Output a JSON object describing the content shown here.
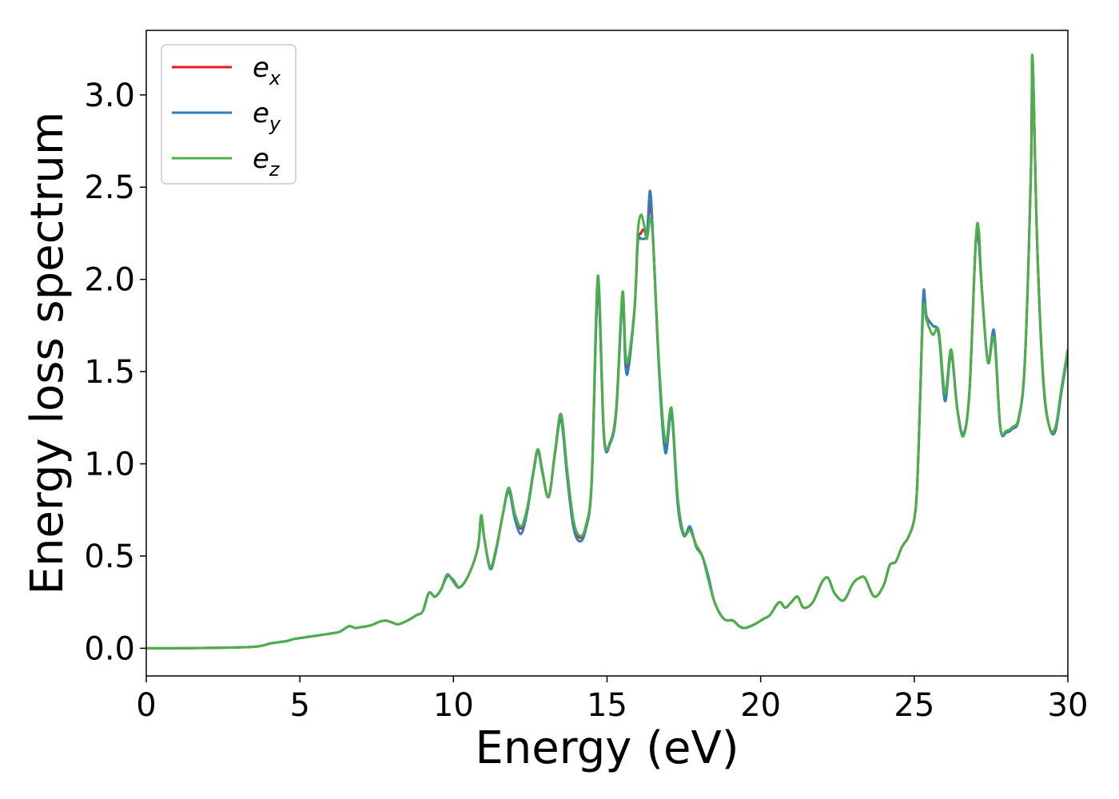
{
  "chart_data": {
    "type": "line",
    "xlabel": "Energy (eV)",
    "ylabel": "Energy loss spectrum",
    "xlim": [
      0,
      30
    ],
    "ylim": [
      -0.15,
      3.35
    ],
    "xticks": [
      "0",
      "5",
      "10",
      "15",
      "20",
      "25",
      "30"
    ],
    "yticks": [
      "0.0",
      "0.5",
      "1.0",
      "1.5",
      "2.0",
      "2.5",
      "3.0"
    ],
    "grid": false,
    "legend_position": "top-left",
    "series": [
      {
        "name": "e",
        "subscript": "x",
        "color": "#e41a1c",
        "x": [
          0,
          1,
          2,
          3,
          3.5,
          3.8,
          4.0,
          4.2,
          4.4,
          4.6,
          4.8,
          5.0,
          5.2,
          5.4,
          5.6,
          5.8,
          6.0,
          6.3,
          6.6,
          6.8,
          7.0,
          7.2,
          7.4,
          7.6,
          7.8,
          8.0,
          8.2,
          8.5,
          8.8,
          9.0,
          9.2,
          9.4,
          9.6,
          9.8,
          10.0,
          10.2,
          10.5,
          10.8,
          10.9,
          11.0,
          11.2,
          11.4,
          11.6,
          11.8,
          12.0,
          12.2,
          12.4,
          12.6,
          12.75,
          12.9,
          13.1,
          13.3,
          13.5,
          13.7,
          13.9,
          14.1,
          14.3,
          14.5,
          14.7,
          14.9,
          15.1,
          15.3,
          15.5,
          15.6,
          15.7,
          15.9,
          16.0,
          16.1,
          16.2,
          16.3,
          16.4,
          16.5,
          16.7,
          16.9,
          17.1,
          17.3,
          17.5,
          17.7,
          17.9,
          18.1,
          18.3,
          18.5,
          18.8,
          19.1,
          19.3,
          19.5,
          19.8,
          20.1,
          20.3,
          20.6,
          20.8,
          21.0,
          21.2,
          21.4,
          21.7,
          22.0,
          22.2,
          22.4,
          22.7,
          23.0,
          23.2,
          23.4,
          23.7,
          24.0,
          24.2,
          24.4,
          24.6,
          24.8,
          25.0,
          25.1,
          25.2,
          25.3,
          25.4,
          25.6,
          25.8,
          26.0,
          26.2,
          26.4,
          26.6,
          26.8,
          27.0,
          27.1,
          27.2,
          27.4,
          27.6,
          27.8,
          28.0,
          28.2,
          28.4,
          28.6,
          28.8,
          28.85,
          29.0,
          29.2,
          29.4,
          29.6,
          29.8,
          30.0
        ],
        "values": [
          0,
          0,
          0.002,
          0.005,
          0.008,
          0.015,
          0.025,
          0.03,
          0.035,
          0.04,
          0.05,
          0.055,
          0.06,
          0.065,
          0.07,
          0.075,
          0.08,
          0.09,
          0.12,
          0.11,
          0.115,
          0.12,
          0.13,
          0.145,
          0.15,
          0.14,
          0.13,
          0.15,
          0.18,
          0.2,
          0.3,
          0.28,
          0.32,
          0.4,
          0.36,
          0.33,
          0.4,
          0.55,
          0.72,
          0.6,
          0.44,
          0.55,
          0.72,
          0.86,
          0.72,
          0.65,
          0.75,
          0.95,
          1.07,
          0.95,
          0.82,
          1.05,
          1.25,
          0.95,
          0.68,
          0.6,
          0.65,
          0.9,
          1.95,
          1.15,
          1.12,
          1.3,
          1.9,
          1.58,
          1.55,
          1.85,
          2.2,
          2.25,
          2.27,
          2.24,
          2.42,
          2.2,
          1.5,
          1.1,
          1.28,
          0.8,
          0.62,
          0.65,
          0.56,
          0.5,
          0.38,
          0.25,
          0.16,
          0.15,
          0.12,
          0.11,
          0.13,
          0.16,
          0.18,
          0.25,
          0.22,
          0.25,
          0.28,
          0.22,
          0.25,
          0.36,
          0.38,
          0.3,
          0.26,
          0.35,
          0.38,
          0.38,
          0.28,
          0.34,
          0.45,
          0.47,
          0.55,
          0.6,
          0.7,
          0.9,
          1.4,
          1.9,
          1.8,
          1.75,
          1.7,
          1.38,
          1.6,
          1.3,
          1.16,
          1.4,
          2.2,
          2.2,
          1.95,
          1.55,
          1.7,
          1.2,
          1.17,
          1.2,
          1.25,
          1.55,
          2.6,
          3.2,
          2.2,
          1.45,
          1.2,
          1.2,
          1.4,
          1.6
        ]
      },
      {
        "name": "e",
        "subscript": "y",
        "color": "#377eb8",
        "x": [
          0,
          1,
          2,
          3,
          3.5,
          3.8,
          4.0,
          4.2,
          4.4,
          4.6,
          4.8,
          5.0,
          5.2,
          5.4,
          5.6,
          5.8,
          6.0,
          6.3,
          6.6,
          6.8,
          7.0,
          7.2,
          7.4,
          7.6,
          7.8,
          8.0,
          8.2,
          8.5,
          8.8,
          9.0,
          9.2,
          9.4,
          9.6,
          9.8,
          10.0,
          10.2,
          10.5,
          10.8,
          10.9,
          11.0,
          11.2,
          11.4,
          11.6,
          11.8,
          12.0,
          12.2,
          12.4,
          12.6,
          12.75,
          12.9,
          13.1,
          13.3,
          13.5,
          13.7,
          13.9,
          14.1,
          14.3,
          14.5,
          14.7,
          14.9,
          15.1,
          15.3,
          15.5,
          15.6,
          15.7,
          15.9,
          16.0,
          16.1,
          16.2,
          16.3,
          16.4,
          16.5,
          16.7,
          16.9,
          17.1,
          17.3,
          17.5,
          17.7,
          17.9,
          18.1,
          18.3,
          18.5,
          18.8,
          19.1,
          19.3,
          19.5,
          19.8,
          20.1,
          20.3,
          20.6,
          20.8,
          21.0,
          21.2,
          21.4,
          21.7,
          22.0,
          22.2,
          22.4,
          22.7,
          23.0,
          23.2,
          23.4,
          23.7,
          24.0,
          24.2,
          24.4,
          24.6,
          24.8,
          25.0,
          25.1,
          25.2,
          25.3,
          25.4,
          25.6,
          25.8,
          26.0,
          26.2,
          26.4,
          26.6,
          26.8,
          27.0,
          27.1,
          27.2,
          27.4,
          27.6,
          27.8,
          28.0,
          28.2,
          28.4,
          28.6,
          28.8,
          28.85,
          29.0,
          29.2,
          29.4,
          29.6,
          29.8,
          30.0
        ],
        "values": [
          0,
          0,
          0.002,
          0.005,
          0.008,
          0.015,
          0.025,
          0.03,
          0.035,
          0.04,
          0.05,
          0.055,
          0.06,
          0.065,
          0.07,
          0.075,
          0.08,
          0.09,
          0.12,
          0.11,
          0.115,
          0.12,
          0.13,
          0.145,
          0.15,
          0.14,
          0.13,
          0.15,
          0.18,
          0.2,
          0.3,
          0.28,
          0.32,
          0.39,
          0.37,
          0.33,
          0.4,
          0.55,
          0.72,
          0.6,
          0.43,
          0.54,
          0.72,
          0.85,
          0.7,
          0.62,
          0.74,
          0.95,
          1.07,
          0.95,
          0.82,
          1.05,
          1.24,
          0.93,
          0.66,
          0.58,
          0.64,
          0.9,
          1.95,
          1.14,
          1.11,
          1.28,
          1.88,
          1.53,
          1.52,
          1.85,
          2.2,
          2.22,
          2.22,
          2.25,
          2.48,
          2.22,
          1.48,
          1.06,
          1.27,
          0.78,
          0.61,
          0.66,
          0.55,
          0.5,
          0.39,
          0.25,
          0.16,
          0.15,
          0.12,
          0.11,
          0.13,
          0.16,
          0.18,
          0.25,
          0.22,
          0.25,
          0.28,
          0.22,
          0.25,
          0.36,
          0.38,
          0.3,
          0.26,
          0.35,
          0.38,
          0.38,
          0.28,
          0.34,
          0.45,
          0.47,
          0.55,
          0.6,
          0.7,
          0.9,
          1.4,
          1.93,
          1.8,
          1.75,
          1.7,
          1.34,
          1.6,
          1.3,
          1.16,
          1.4,
          2.2,
          2.2,
          1.95,
          1.55,
          1.72,
          1.2,
          1.17,
          1.19,
          1.24,
          1.55,
          2.6,
          3.2,
          2.2,
          1.45,
          1.2,
          1.18,
          1.4,
          1.6
        ]
      },
      {
        "name": "e",
        "subscript": "z",
        "color": "#4daf4a",
        "x": [
          0,
          1,
          2,
          3,
          3.5,
          3.8,
          4.0,
          4.2,
          4.4,
          4.6,
          4.8,
          5.0,
          5.2,
          5.4,
          5.6,
          5.8,
          6.0,
          6.3,
          6.6,
          6.8,
          7.0,
          7.2,
          7.4,
          7.6,
          7.8,
          8.0,
          8.2,
          8.5,
          8.8,
          9.0,
          9.2,
          9.4,
          9.6,
          9.8,
          10.0,
          10.2,
          10.5,
          10.8,
          10.9,
          11.0,
          11.2,
          11.4,
          11.6,
          11.8,
          12.0,
          12.2,
          12.4,
          12.6,
          12.75,
          12.9,
          13.1,
          13.3,
          13.5,
          13.7,
          13.9,
          14.1,
          14.3,
          14.5,
          14.7,
          14.9,
          15.1,
          15.3,
          15.5,
          15.6,
          15.7,
          15.9,
          16.0,
          16.1,
          16.2,
          16.3,
          16.4,
          16.5,
          16.7,
          16.9,
          17.1,
          17.3,
          17.5,
          17.7,
          17.9,
          18.1,
          18.3,
          18.5,
          18.8,
          19.1,
          19.3,
          19.5,
          19.8,
          20.1,
          20.3,
          20.6,
          20.8,
          21.0,
          21.2,
          21.4,
          21.7,
          22.0,
          22.2,
          22.4,
          22.7,
          23.0,
          23.2,
          23.4,
          23.7,
          24.0,
          24.2,
          24.4,
          24.6,
          24.8,
          25.0,
          25.1,
          25.2,
          25.3,
          25.4,
          25.6,
          25.8,
          26.0,
          26.2,
          26.4,
          26.6,
          26.8,
          27.0,
          27.1,
          27.2,
          27.4,
          27.6,
          27.8,
          28.0,
          28.2,
          28.4,
          28.6,
          28.8,
          28.85,
          29.0,
          29.2,
          29.4,
          29.6,
          29.8,
          30.0
        ],
        "values": [
          0,
          0,
          0.002,
          0.005,
          0.008,
          0.015,
          0.025,
          0.03,
          0.035,
          0.04,
          0.05,
          0.055,
          0.06,
          0.065,
          0.07,
          0.075,
          0.08,
          0.09,
          0.12,
          0.11,
          0.115,
          0.12,
          0.13,
          0.145,
          0.15,
          0.14,
          0.13,
          0.15,
          0.18,
          0.2,
          0.3,
          0.28,
          0.32,
          0.4,
          0.36,
          0.33,
          0.4,
          0.55,
          0.72,
          0.6,
          0.44,
          0.55,
          0.72,
          0.87,
          0.73,
          0.66,
          0.76,
          0.96,
          1.08,
          0.96,
          0.82,
          1.06,
          1.27,
          0.97,
          0.7,
          0.61,
          0.66,
          0.92,
          2.02,
          1.16,
          1.12,
          1.3,
          1.93,
          1.6,
          1.57,
          1.86,
          2.25,
          2.35,
          2.3,
          2.22,
          2.33,
          2.2,
          1.52,
          1.12,
          1.3,
          0.82,
          0.62,
          0.64,
          0.56,
          0.5,
          0.37,
          0.25,
          0.16,
          0.15,
          0.12,
          0.11,
          0.13,
          0.16,
          0.18,
          0.25,
          0.22,
          0.25,
          0.28,
          0.22,
          0.25,
          0.36,
          0.38,
          0.3,
          0.26,
          0.35,
          0.38,
          0.38,
          0.28,
          0.34,
          0.45,
          0.47,
          0.55,
          0.6,
          0.7,
          0.9,
          1.4,
          1.85,
          1.78,
          1.7,
          1.72,
          1.38,
          1.62,
          1.3,
          1.15,
          1.4,
          2.2,
          2.27,
          1.95,
          1.55,
          1.68,
          1.2,
          1.18,
          1.2,
          1.25,
          1.56,
          2.6,
          3.21,
          2.2,
          1.47,
          1.2,
          1.2,
          1.42,
          1.62
        ]
      }
    ]
  }
}
